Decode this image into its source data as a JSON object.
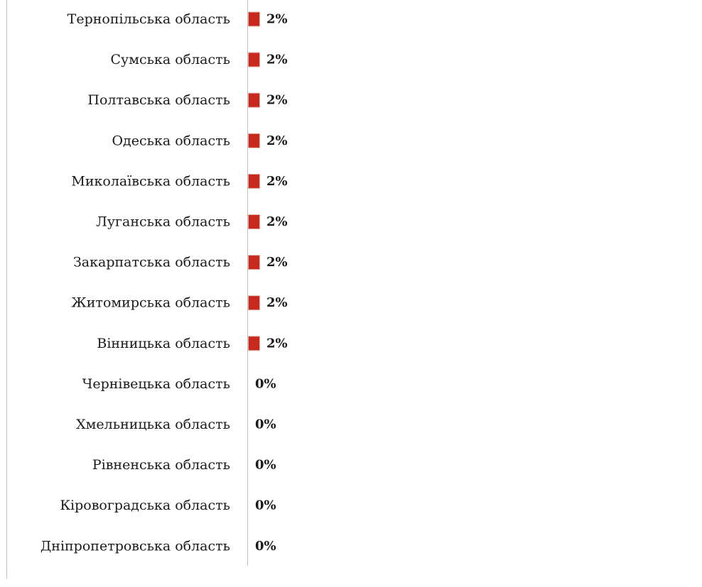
{
  "chart_data": {
    "type": "bar",
    "orientation": "horizontal",
    "categories": [
      "Тернопільська область",
      "Сумська область",
      "Полтавська область",
      "Одеська область",
      "Миколаївська область",
      "Луганська область",
      "Закарпатська область",
      "Житомирська область",
      "Вінницька область",
      "Чернівецька область",
      "Хмельницька область",
      "Рівненська область",
      "Кіровоградська область",
      "Дніпропетровська область"
    ],
    "values": [
      2,
      2,
      2,
      2,
      2,
      2,
      2,
      2,
      2,
      0,
      0,
      0,
      0,
      0
    ],
    "value_labels": [
      "2%",
      "2%",
      "2%",
      "2%",
      "2%",
      "2%",
      "2%",
      "2%",
      "2%",
      "0%",
      "0%",
      "0%",
      "0%",
      "0%"
    ],
    "unit": "%",
    "xlim": [
      0,
      100
    ],
    "grid": false,
    "legend": "none",
    "colors": {
      "bar": "#c9281c",
      "bar_edge": "#e0b0a8",
      "axis": "#bfbfbf",
      "text": "#1a1a1a"
    }
  }
}
